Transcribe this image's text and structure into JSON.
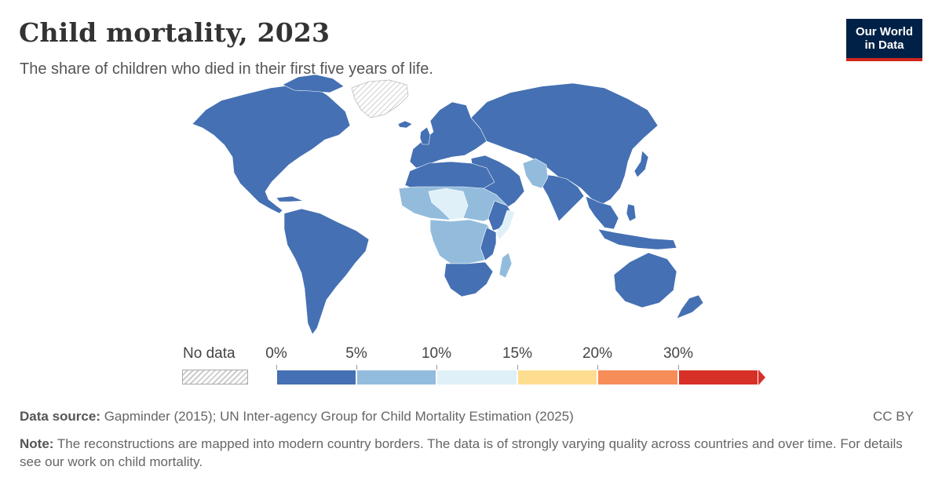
{
  "header": {
    "title": "Child mortality, 2023",
    "subtitle": "The share of children who died in their first five years of life."
  },
  "logo": {
    "line1": "Our World",
    "line2": "in Data"
  },
  "map_data": {
    "type": "choropleth",
    "metric": "Under-five mortality rate",
    "year": 2023,
    "regions": [
      {
        "name": "North America",
        "bin": "0-5%"
      },
      {
        "name": "South America",
        "bin": "0-5%"
      },
      {
        "name": "Europe",
        "bin": "0-5%"
      },
      {
        "name": "Russia and Central Asia",
        "bin": "0-5%"
      },
      {
        "name": "East Asia",
        "bin": "0-5%"
      },
      {
        "name": "South Asia",
        "bin": "0-5%"
      },
      {
        "name": "Pakistan",
        "bin": "5-10%"
      },
      {
        "name": "Afghanistan",
        "bin": "5-10%"
      },
      {
        "name": "Middle East",
        "bin": "0-5%"
      },
      {
        "name": "North Africa",
        "bin": "0-5%"
      },
      {
        "name": "Sahel",
        "bin": "5-10%"
      },
      {
        "name": "Niger / Chad",
        "bin": "10-15%"
      },
      {
        "name": "Somalia",
        "bin": "10-15%"
      },
      {
        "name": "Central Africa",
        "bin": "5-10%"
      },
      {
        "name": "Southern Africa",
        "bin": "0-5%"
      },
      {
        "name": "Madagascar",
        "bin": "5-10%"
      },
      {
        "name": "Australia",
        "bin": "0-5%"
      },
      {
        "name": "Indonesia",
        "bin": "0-5%"
      },
      {
        "name": "Greenland",
        "bin": "No data"
      }
    ]
  },
  "legend": {
    "no_data_label": "No data",
    "ticks": [
      "0%",
      "5%",
      "10%",
      "15%",
      "20%",
      "30%"
    ],
    "bins": [
      {
        "range": "0-5%",
        "color": "#4570b3"
      },
      {
        "range": "5-10%",
        "color": "#93bcdc"
      },
      {
        "range": "10-15%",
        "color": "#e0f0f8"
      },
      {
        "range": "15-20%",
        "color": "#fedd90"
      },
      {
        "range": "20-30%",
        "color": "#f78d58"
      },
      {
        "range": "30%+",
        "color": "#d73027"
      }
    ]
  },
  "footer": {
    "source_label": "Data source:",
    "source_text": " Gapminder (2015); UN Inter-agency Group for Child Mortality Estimation (2025)",
    "license": "CC BY",
    "note_label": "Note:",
    "note_text": " The reconstructions are mapped into modern country borders. The data is of strongly varying quality across countries and over time. For details see our work on child mortality."
  }
}
